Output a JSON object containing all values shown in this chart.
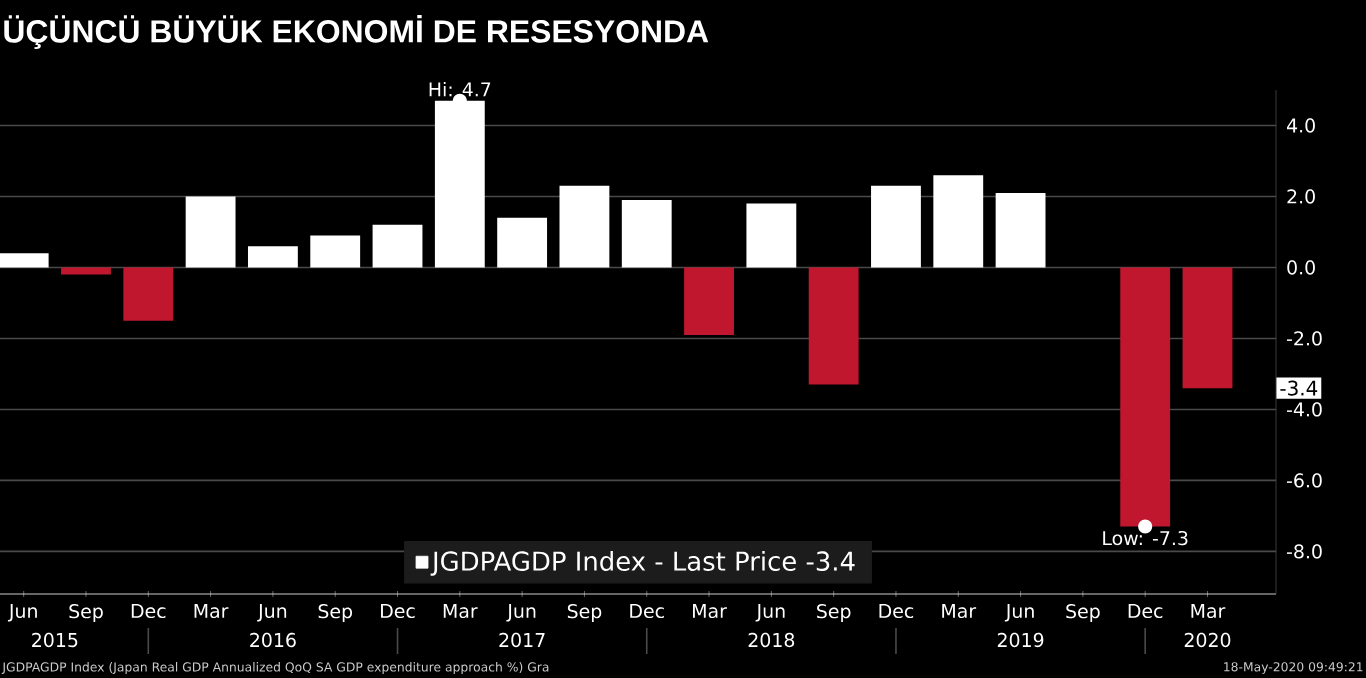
{
  "chart_data": {
    "type": "bar",
    "title": "ÜÇÜNCÜ BÜYÜK EKONOMİ DE RESESYONDA",
    "categories": [
      "Jun",
      "Sep",
      "Dec",
      "Mar",
      "Jun",
      "Sep",
      "Dec",
      "Mar",
      "Jun",
      "Sep",
      "Dec",
      "Mar",
      "Jun",
      "Sep",
      "Dec",
      "Mar",
      "Jun",
      "Sep",
      "Dec",
      "Mar"
    ],
    "series": [
      {
        "name": "JGDPAGDP Index - Last Price -3.4",
        "color": "#ffffff",
        "values": [
          0.4,
          -0.2,
          -1.5,
          2.0,
          0.6,
          0.9,
          1.2,
          4.7,
          1.4,
          2.3,
          1.9,
          -1.9,
          1.8,
          -3.3,
          2.3,
          2.6,
          2.1,
          0.0,
          -7.3,
          -3.4
        ],
        "colors": [
          "#ffffff",
          "#c0172e",
          "#c0172e",
          "#ffffff",
          "#ffffff",
          "#ffffff",
          "#ffffff",
          "#ffffff",
          "#ffffff",
          "#ffffff",
          "#ffffff",
          "#c0172e",
          "#ffffff",
          "#c0172e",
          "#ffffff",
          "#ffffff",
          "#ffffff",
          "#ffffff",
          "#c0172e",
          "#c0172e"
        ]
      }
    ],
    "ylim": [
      -9.2,
      5.0
    ],
    "yticks": [
      {
        "value": 4,
        "label": "4.0"
      },
      {
        "value": 2,
        "label": "2.0"
      },
      {
        "value": 0,
        "label": "0.0"
      },
      {
        "value": -2,
        "label": "-2.0"
      },
      {
        "value": -4,
        "label": "-4.0"
      },
      {
        "value": -6,
        "label": "-6.0"
      },
      {
        "value": -8,
        "label": "-8.0"
      }
    ],
    "grid": "y",
    "legend": "bottom",
    "annotations": [
      "JGDPAGDP Index (Japan Real GDP Annualized QoQ SA GDP expenditure approach %) Gra",
      "18-May-2020 09:49:21",
      {
        "text": "Hi: 4.7",
        "y": 4.7
      },
      {
        "text": "Low: -7.3",
        "y": -7.3
      },
      {
        "text": "-3.4",
        "y": -3.4
      },
      "2015",
      "2016",
      "2017",
      "2018",
      "2019",
      "2020"
    ]
  }
}
